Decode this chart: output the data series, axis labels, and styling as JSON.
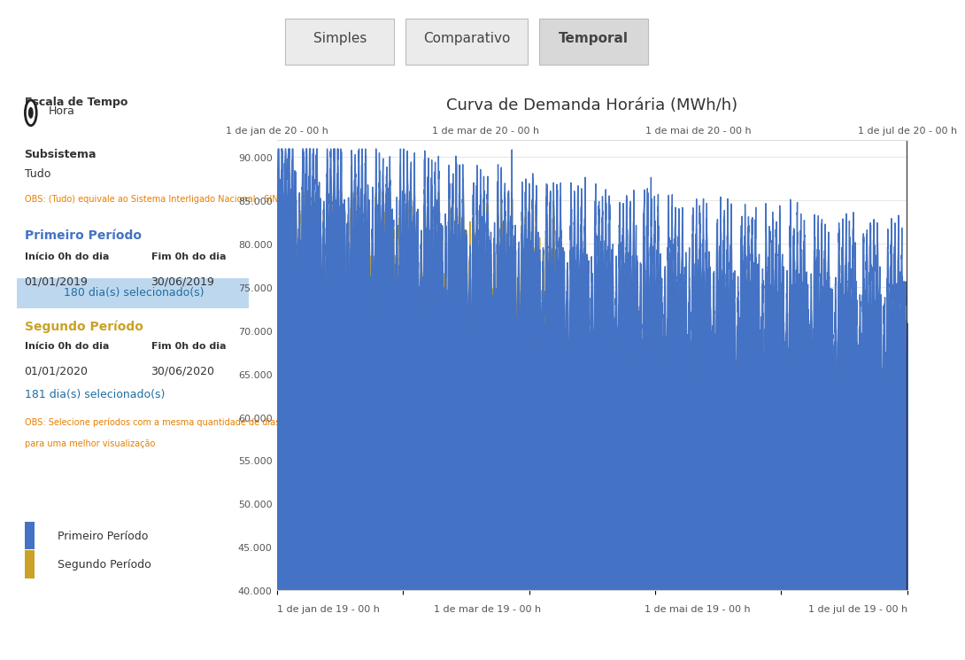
{
  "title": "Curva de Demanda Horária (MWh/h)",
  "color_blue": "#4472C4",
  "color_gold": "#C9A227",
  "ylim": [
    40000,
    92000
  ],
  "yticks": [
    40000,
    45000,
    50000,
    55000,
    60000,
    65000,
    70000,
    75000,
    80000,
    85000,
    90000
  ],
  "top_tabs": [
    "Simples",
    "Comparativo",
    "Temporal"
  ],
  "active_tab": "Temporal",
  "left_panel": {
    "escala_label": "Escala de Tempo",
    "escala_value": "Hora",
    "subsistema_label": "Subsistema",
    "subsistema_value": "Tudo",
    "obs1": "OBS: (Tudo) equivale ao Sistema Interligado Nacional - SIN",
    "primeiro_periodo_label": "Primeiro Período",
    "inicio_label": "Início 0h do dia",
    "fim_label": "Fim 0h do dia",
    "inicio1": "01/01/2019",
    "fim1": "30/06/2019",
    "days1": "180 dia(s) selecionado(s)",
    "segundo_periodo_label": "Segundo Período",
    "inicio2": "01/01/2020",
    "fim2": "30/06/2020",
    "days2": "181 dia(s) selecionado(s)",
    "obs2": "OBS: Selecione períodos com a mesma quantidade de dias\npara uma melhor visualização"
  },
  "top_xticklabels": [
    "1 de jan de 20 - 00 h",
    "1 de mar de 20 - 00 h",
    "1 de mai de 20 - 00 h",
    "1 de jul de 20 - 00 h"
  ],
  "bottom_xticklabels": [
    "1 de jan de 19 - 00 h",
    "1 de mar de 19 - 00 h",
    "1 de mai de 19 - 00 h",
    "1 de jul de 19 - 00 h"
  ],
  "legend_labels": [
    "Primeiro Período",
    "Segundo Período"
  ],
  "n_days": 181,
  "seed": 42
}
